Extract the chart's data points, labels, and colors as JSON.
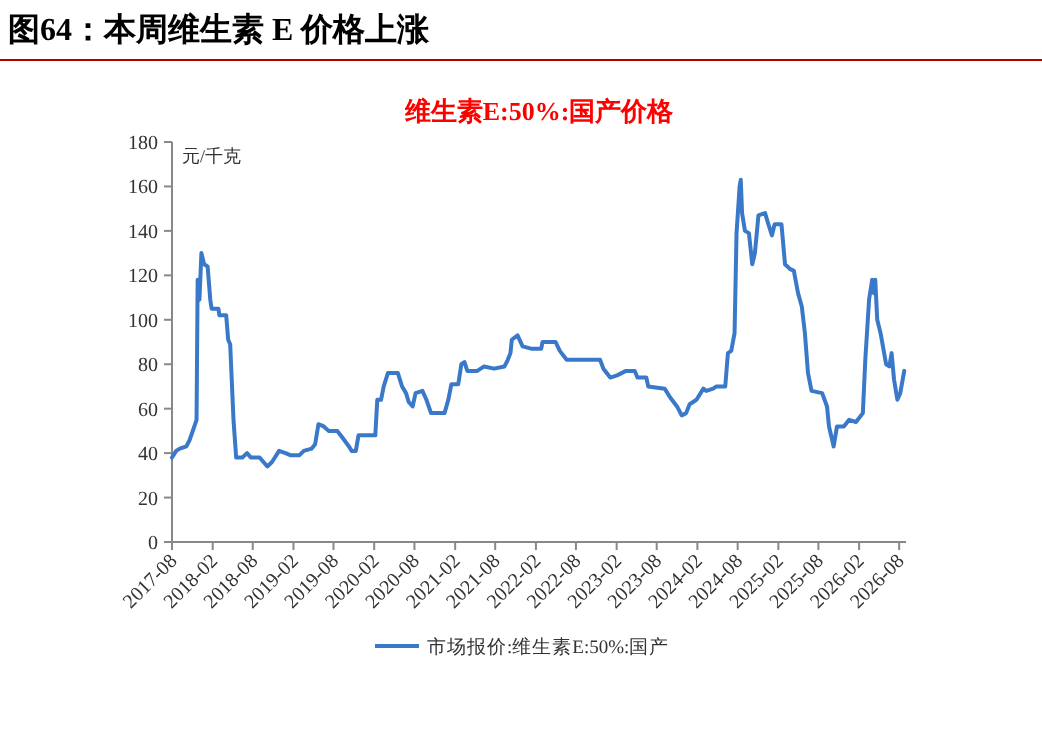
{
  "chart_data": {
    "type": "line",
    "title": "维生素E:50%:国产价格",
    "subtitle": "图64：本周维生素 E 价格上涨",
    "ylabel": "元/千克",
    "xlim": [
      "2017-08-01",
      "2026-09-01"
    ],
    "ylim": [
      0,
      180
    ],
    "yticks": [
      0,
      20,
      40,
      60,
      80,
      100,
      120,
      140,
      160,
      180
    ],
    "xticks": [
      "2017-08",
      "2018-02",
      "2018-08",
      "2019-02",
      "2019-08",
      "2020-02",
      "2020-08",
      "2021-02",
      "2021-08",
      "2022-02",
      "2022-08",
      "2023-02",
      "2023-08",
      "2024-02",
      "2024-08",
      "2025-02",
      "2025-08",
      "2026-02",
      "2026-08"
    ],
    "grid": false,
    "legend": "bottom",
    "marker": "none",
    "line_style": "solid",
    "series": [
      {
        "name": "市场报价:维生素E:50%:国产",
        "color": "#3a78c9",
        "x": [
          "2017-08-01",
          "2017-08-20",
          "2017-09-05",
          "2017-10-05",
          "2017-10-20",
          "2017-11-10",
          "2017-11-20",
          "2017-11-25",
          "2017-12-03",
          "2017-12-12",
          "2017-12-24",
          "2018-01-09",
          "2018-01-21",
          "2018-01-27",
          "2018-02-27",
          "2018-03-03",
          "2018-04-03",
          "2018-04-12",
          "2018-04-21",
          "2018-05-06",
          "2018-05-18",
          "2018-06-15",
          "2018-07-06",
          "2018-07-24",
          "2018-09-01",
          "2018-10-06",
          "2018-10-27",
          "2018-11-28",
          "2018-12-27",
          "2019-01-20",
          "2019-02-27",
          "2019-03-20",
          "2019-04-24",
          "2019-05-10",
          "2019-05-25",
          "2019-06-18",
          "2019-07-10",
          "2019-08-18",
          "2019-09-10",
          "2019-10-10",
          "2019-10-22",
          "2019-11-10",
          "2019-11-22",
          "2020-02-06",
          "2020-02-15",
          "2020-03-03",
          "2020-03-15",
          "2020-04-03",
          "2020-05-18",
          "2020-06-06",
          "2020-06-24",
          "2020-07-06",
          "2020-07-24",
          "2020-08-06",
          "2020-09-06",
          "2020-09-24",
          "2020-10-15",
          "2020-12-15",
          "2021-01-01",
          "2021-01-15",
          "2021-02-15",
          "2021-03-01",
          "2021-03-15",
          "2021-03-28",
          "2021-05-12",
          "2021-06-12",
          "2021-07-27",
          "2021-09-12",
          "2021-09-27",
          "2021-10-09",
          "2021-10-15",
          "2021-11-10",
          "2021-12-03",
          "2022-01-10",
          "2022-02-25",
          "2022-03-03",
          "2022-05-01",
          "2022-05-20",
          "2022-06-20",
          "2022-11-18",
          "2022-12-03",
          "2023-01-03",
          "2023-02-03",
          "2023-03-15",
          "2023-04-24",
          "2023-05-06",
          "2023-06-15",
          "2023-06-24",
          "2023-09-06",
          "2023-10-01",
          "2023-11-01",
          "2023-11-22",
          "2023-12-12",
          "2023-12-28",
          "2024-01-28",
          "2024-02-28",
          "2024-03-12",
          "2024-04-12",
          "2024-04-27",
          "2024-06-06",
          "2024-06-18",
          "2024-07-03",
          "2024-07-18",
          "2024-07-27",
          "2024-08-10",
          "2024-08-15",
          "2024-08-21",
          "2024-09-03",
          "2024-09-21",
          "2024-10-06",
          "2024-10-18",
          "2024-11-03",
          "2024-12-03",
          "2024-12-18",
          "2025-01-03",
          "2025-01-15",
          "2025-02-15",
          "2025-03-03",
          "2025-03-24",
          "2025-04-12",
          "2025-05-01",
          "2025-05-18",
          "2025-06-01",
          "2025-06-15",
          "2025-07-01",
          "2025-08-18",
          "2025-09-09",
          "2025-09-18",
          "2025-10-09",
          "2025-10-24",
          "2025-11-24",
          "2025-12-18",
          "2026-01-18",
          "2026-02-18",
          "2026-03-01",
          "2026-03-18",
          "2026-04-01",
          "2026-04-09",
          "2026-04-15",
          "2026-04-24",
          "2026-05-09",
          "2026-06-03",
          "2026-06-18",
          "2026-06-28",
          "2026-07-09",
          "2026-07-24",
          "2026-08-06",
          "2026-08-24"
        ],
        "values": [
          38,
          41,
          42,
          43,
          46,
          52,
          55,
          118,
          109,
          130,
          125,
          124,
          109,
          105,
          105,
          102,
          102,
          91,
          89,
          55,
          38,
          38,
          40,
          38,
          38,
          34,
          36,
          41,
          40,
          39,
          39,
          41,
          42,
          44,
          53,
          52,
          50,
          50,
          47,
          43,
          41,
          41,
          48,
          48,
          64,
          64,
          70,
          76,
          76,
          70,
          67,
          63,
          61,
          67,
          68,
          64,
          58,
          58,
          64,
          71,
          71,
          80,
          81,
          77,
          77,
          79,
          78,
          79,
          82,
          85,
          91,
          93,
          88,
          87,
          87,
          90,
          90,
          86,
          82,
          82,
          78,
          74,
          75,
          77,
          77,
          74,
          74,
          70,
          69,
          65,
          61,
          57,
          58,
          62,
          64,
          69,
          68,
          69,
          70,
          70,
          85,
          86,
          94,
          139,
          160,
          163,
          148,
          140,
          139,
          125,
          130,
          147,
          148,
          143,
          138,
          143,
          143,
          125,
          123,
          122,
          112,
          106,
          94,
          76,
          68,
          67,
          61,
          52,
          43,
          52,
          52,
          55,
          54,
          58,
          82,
          109,
          118,
          112,
          118,
          100,
          94,
          80,
          79,
          85,
          73,
          64,
          67,
          77
        ]
      }
    ]
  }
}
